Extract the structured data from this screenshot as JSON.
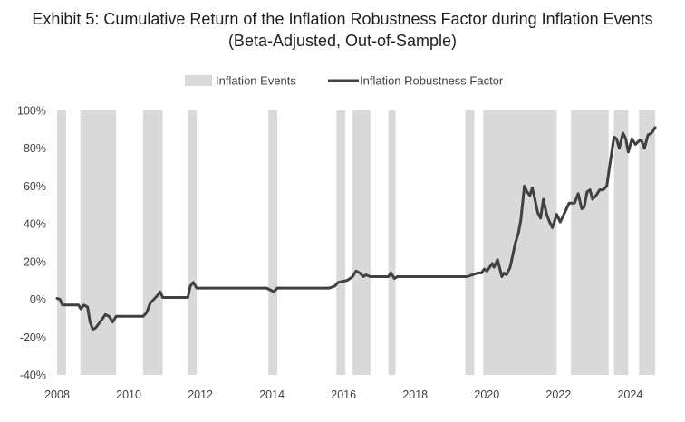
{
  "title_line1": "Exhibit 5:  Cumulative Return of the Inflation Robustness Factor during Inflation Events",
  "title_line2": "(Beta-Adjusted, Out-of-Sample)",
  "chart_data": {
    "type": "line",
    "title": "Exhibit 5: Cumulative Return of the Inflation Robustness Factor during Inflation Events (Beta-Adjusted, Out-of-Sample)",
    "xlabel": "",
    "ylabel": "",
    "xlim": [
      2008.0,
      2024.8
    ],
    "ylim": [
      -40,
      100
    ],
    "x_ticks": [
      2008,
      2010,
      2012,
      2014,
      2016,
      2018,
      2020,
      2022,
      2024
    ],
    "x_tick_labels": [
      "2008",
      "2010",
      "2012",
      "2014",
      "2016",
      "2018",
      "2020",
      "2022",
      "2024"
    ],
    "y_ticks": [
      -40,
      -20,
      0,
      20,
      40,
      60,
      80,
      100
    ],
    "y_tick_labels": [
      "-40%",
      "-20%",
      "0%",
      "20%",
      "40%",
      "60%",
      "80%",
      "100%"
    ],
    "grid": false,
    "legend_position": "top-center",
    "legend": [
      {
        "label": "Inflation Events",
        "kind": "band",
        "color": "#d9d9d9"
      },
      {
        "label": "Inflation Robustness Factor",
        "kind": "line",
        "color": "#404040"
      }
    ],
    "inflation_events": [
      [
        2008.0,
        2008.25
      ],
      [
        2008.65,
        2009.65
      ],
      [
        2010.4,
        2010.95
      ],
      [
        2011.65,
        2011.9
      ],
      [
        2013.9,
        2014.15
      ],
      [
        2015.8,
        2016.05
      ],
      [
        2016.25,
        2016.75
      ],
      [
        2017.25,
        2017.45
      ],
      [
        2019.4,
        2019.65
      ],
      [
        2019.9,
        2021.95
      ],
      [
        2022.35,
        2023.4
      ],
      [
        2023.55,
        2023.95
      ],
      [
        2024.25,
        2024.7
      ]
    ],
    "series": [
      {
        "name": "Inflation Robustness Factor",
        "color": "#404040",
        "x": [
          2008.0,
          2008.08,
          2008.15,
          2008.2,
          2008.6,
          2008.66,
          2008.75,
          2008.85,
          2008.92,
          2009.0,
          2009.08,
          2009.2,
          2009.35,
          2009.45,
          2009.55,
          2009.65,
          2009.8,
          2010.2,
          2010.4,
          2010.5,
          2010.6,
          2010.7,
          2010.8,
          2010.88,
          2010.95,
          2011.5,
          2011.65,
          2011.72,
          2011.8,
          2011.9,
          2012.0,
          2013.85,
          2013.95,
          2014.05,
          2014.15,
          2015.6,
          2015.75,
          2015.85,
          2016.1,
          2016.25,
          2016.35,
          2016.45,
          2016.55,
          2016.62,
          2016.75,
          2017.25,
          2017.32,
          2017.42,
          2017.5,
          2019.35,
          2019.45,
          2019.6,
          2019.75,
          2019.85,
          2019.93,
          2020.0,
          2020.08,
          2020.15,
          2020.2,
          2020.3,
          2020.42,
          2020.48,
          2020.55,
          2020.65,
          2020.72,
          2020.8,
          2020.88,
          2020.95,
          2021.05,
          2021.12,
          2021.2,
          2021.27,
          2021.33,
          2021.42,
          2021.5,
          2021.58,
          2021.67,
          2021.75,
          2021.83,
          2021.9,
          2021.95,
          2022.05,
          2022.3,
          2022.38,
          2022.45,
          2022.55,
          2022.65,
          2022.72,
          2022.8,
          2022.88,
          2022.95,
          2023.05,
          2023.15,
          2023.25,
          2023.35,
          2023.45,
          2023.55,
          2023.62,
          2023.7,
          2023.8,
          2023.88,
          2023.95,
          2024.05,
          2024.15,
          2024.25,
          2024.32,
          2024.4,
          2024.5,
          2024.6,
          2024.7
        ],
        "values": [
          0.5,
          0,
          -3,
          -3,
          -3,
          -5,
          -3,
          -4,
          -12,
          -16,
          -15,
          -12,
          -8,
          -9,
          -12,
          -9,
          -9,
          -9,
          -9,
          -7,
          -2,
          0,
          2,
          4,
          1,
          1,
          1,
          7,
          9,
          6,
          6,
          6,
          5,
          4,
          6,
          6,
          7,
          9,
          10,
          12,
          15,
          14,
          12,
          13,
          12,
          12,
          14,
          11,
          12,
          12,
          12,
          13,
          14,
          14,
          16,
          15,
          17,
          19,
          17,
          21,
          12,
          14,
          13,
          17,
          23,
          30,
          35,
          42,
          60,
          57,
          55,
          59,
          54,
          46,
          43,
          53,
          45,
          41,
          38,
          42,
          45,
          41,
          51,
          51,
          51,
          56,
          48,
          49,
          57,
          58,
          53,
          55,
          58,
          58,
          60,
          73,
          86,
          85,
          80,
          88,
          85,
          78,
          85,
          82,
          84,
          84,
          80,
          87,
          88,
          91
        ]
      }
    ]
  }
}
